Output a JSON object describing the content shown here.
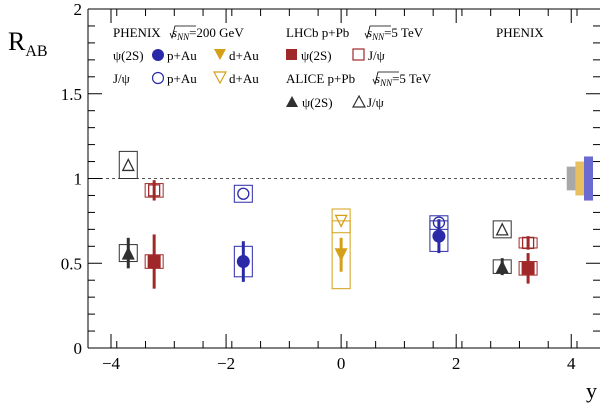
{
  "chart_data": {
    "type": "scatter",
    "xlabel": "y",
    "ylabel_main": "R",
    "ylabel_sub": "AB",
    "xlim": [
      -4.4,
      4.5
    ],
    "ylim": [
      0,
      2
    ],
    "x_ticks": [
      "−4",
      "−2",
      "0",
      "2",
      "4"
    ],
    "x_tick_values": [
      -4,
      -2,
      0,
      2,
      4
    ],
    "y_ticks": [
      "0",
      "0.5",
      "1",
      "1.5",
      "2"
    ],
    "y_tick_values": [
      0,
      0.5,
      1,
      1.5,
      2
    ],
    "reference_line": 1,
    "grid": false,
    "legend_placement": "top",
    "legend": {
      "phenix_header": "PHENIX",
      "phenix_energy_prefix": "s",
      "phenix_energy_sub": "NN",
      "phenix_energy_suffix": "=200 GeV",
      "psi2s_label": "ψ(2S)",
      "jpsi_label": "J/ψ",
      "pau_label": "p+Au",
      "dau_label": "d+Au",
      "lhcb_header": "LHCb p+Pb",
      "lhcb_energy_prefix": "s",
      "lhcb_energy_sub": "NN",
      "lhcb_energy_suffix": "=5 TeV",
      "lhcb_psi2s": "ψ(2S)",
      "lhcb_jpsi": "J/ψ",
      "alice_header": "ALICE p+Pb",
      "alice_energy_prefix": "s",
      "alice_energy_sub": "NN",
      "alice_energy_suffix": "=5 TeV",
      "alice_psi2s": "ψ(2S)",
      "alice_jpsi": "J/ψ",
      "global_label": "PHENIX"
    },
    "colors": {
      "phenix_pau": "#2a2aa8",
      "phenix_dau": "#d4a017",
      "lhcb": "#a02828",
      "alice": "#303030",
      "global_gray": "#a8a8a8",
      "global_gold": "#e8c060",
      "global_blue": "#6a6ad0",
      "reference": "#555555"
    },
    "series": [
      {
        "name": "PHENIX ψ(2S) p+Au",
        "marker": "filled-circle",
        "color": "#2a2aa8",
        "points": [
          {
            "x": -1.7,
            "y": 0.51,
            "stat": 0.12,
            "sys": 0.09
          },
          {
            "x": 1.7,
            "y": 0.66,
            "stat": 0.1,
            "sys": 0.09
          }
        ]
      },
      {
        "name": "PHENIX J/ψ p+Au",
        "marker": "open-circle",
        "color": "#2a2aa8",
        "points": [
          {
            "x": -1.7,
            "y": 0.91,
            "stat": 0.01,
            "sys": 0.05
          },
          {
            "x": 1.7,
            "y": 0.74,
            "stat": 0.01,
            "sys": 0.04
          }
        ]
      },
      {
        "name": "PHENIX ψ(2S) d+Au",
        "marker": "filled-triangle-down",
        "color": "#d4a017",
        "points": [
          {
            "x": 0,
            "y": 0.55,
            "stat": 0.1,
            "sys": 0.2
          }
        ]
      },
      {
        "name": "PHENIX J/ψ d+Au",
        "marker": "open-triangle-down",
        "color": "#d4a017",
        "points": [
          {
            "x": 0,
            "y": 0.75,
            "stat": 0.01,
            "sys": 0.07
          }
        ]
      },
      {
        "name": "LHCb ψ(2S)",
        "marker": "filled-square",
        "color": "#a02828",
        "points": [
          {
            "x": -3.25,
            "y": 0.51,
            "stat": 0.16,
            "sys": 0.04
          },
          {
            "x": 3.25,
            "y": 0.47,
            "stat": 0.09,
            "sys": 0.04
          }
        ]
      },
      {
        "name": "LHCb J/ψ",
        "marker": "open-square",
        "color": "#a02828",
        "points": [
          {
            "x": -3.25,
            "y": 0.93,
            "stat": 0.06,
            "sys": 0.04
          },
          {
            "x": 3.25,
            "y": 0.62,
            "stat": 0.04,
            "sys": 0.03
          }
        ]
      },
      {
        "name": "ALICE ψ(2S)",
        "marker": "filled-triangle-up",
        "color": "#303030",
        "points": [
          {
            "x": -3.7,
            "y": 0.56,
            "stat": 0.09,
            "sys": 0.05
          },
          {
            "x": 2.8,
            "y": 0.48,
            "stat": 0.05,
            "sys": 0.04
          }
        ]
      },
      {
        "name": "ALICE J/ψ",
        "marker": "open-triangle-up",
        "color": "#303030",
        "points": [
          {
            "x": -3.7,
            "y": 1.08,
            "stat": 0.01,
            "sys": 0.08
          },
          {
            "x": 2.8,
            "y": 0.7,
            "stat": 0.01,
            "sys": 0.05
          }
        ]
      }
    ],
    "global_uncertainty_boxes": [
      {
        "x": 4.0,
        "half_height": 0.07,
        "color": "#a8a8a8"
      },
      {
        "x": 4.15,
        "half_height": 0.1,
        "color": "#e8c060"
      },
      {
        "x": 4.3,
        "half_height": 0.13,
        "color": "#6a6ad0"
      }
    ]
  }
}
